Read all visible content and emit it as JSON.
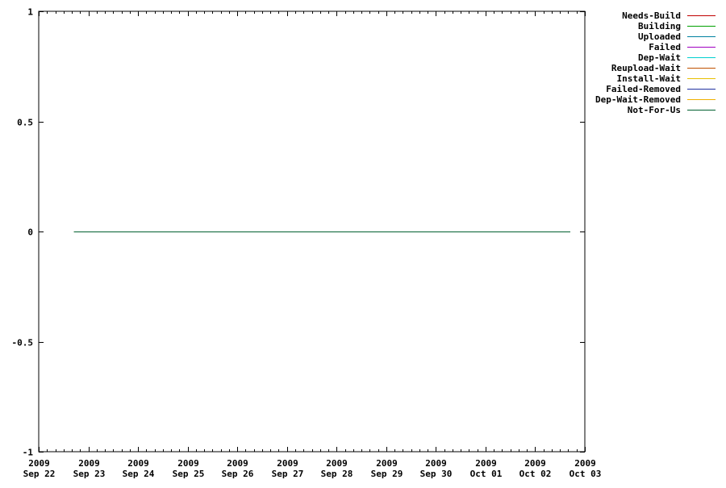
{
  "chart_data": {
    "type": "line",
    "title": "",
    "xlabel": "",
    "ylabel": "",
    "ylim": [
      -1,
      1
    ],
    "yticks": [
      1,
      0.5,
      0,
      -0.5,
      -1
    ],
    "ytick_labels": [
      "1",
      "0.5",
      "0",
      "-0.5",
      "-1"
    ],
    "xlim": [
      "2009-09-22",
      "2009-10-03"
    ],
    "xticks": [
      {
        "date": "2009-09-22",
        "year": "2009",
        "label": "Sep 22"
      },
      {
        "date": "2009-09-23",
        "year": "2009",
        "label": "Sep 23"
      },
      {
        "date": "2009-09-24",
        "year": "2009",
        "label": "Sep 24"
      },
      {
        "date": "2009-09-25",
        "year": "2009",
        "label": "Sep 25"
      },
      {
        "date": "2009-09-26",
        "year": "2009",
        "label": "Sep 26"
      },
      {
        "date": "2009-09-27",
        "year": "2009",
        "label": "Sep 27"
      },
      {
        "date": "2009-09-28",
        "year": "2009",
        "label": "Sep 28"
      },
      {
        "date": "2009-09-29",
        "year": "2009",
        "label": "Sep 29"
      },
      {
        "date": "2009-09-30",
        "year": "2009",
        "label": "Sep 30"
      },
      {
        "date": "2009-10-01",
        "year": "2009",
        "label": "Oct 01"
      },
      {
        "date": "2009-10-02",
        "year": "2009",
        "label": "Oct 02"
      },
      {
        "date": "2009-10-03",
        "year": "2009",
        "label": "Oct 03"
      }
    ],
    "x_range": [
      "2009-09-22 17:00",
      "2009-10-02 17:00"
    ],
    "grid": false,
    "legend_position": "outside-right-top",
    "series": [
      {
        "name": "Needs-Build",
        "color": "#c00000",
        "values": [
          0,
          0
        ]
      },
      {
        "name": "Building",
        "color": "#00a000",
        "values": [
          0,
          0
        ]
      },
      {
        "name": "Uploaded",
        "color": "#0080a0",
        "values": [
          0,
          0
        ]
      },
      {
        "name": "Failed",
        "color": "#a000c0",
        "values": [
          0,
          0
        ]
      },
      {
        "name": "Dep-Wait",
        "color": "#00d0d0",
        "values": [
          0,
          0
        ]
      },
      {
        "name": "Reupload-Wait",
        "color": "#c05000",
        "values": [
          0,
          0
        ]
      },
      {
        "name": "Install-Wait",
        "color": "#e8c000",
        "values": [
          0,
          0
        ]
      },
      {
        "name": "Failed-Removed",
        "color": "#2030a0",
        "values": [
          0,
          0
        ]
      },
      {
        "name": "Dep-Wait-Removed",
        "color": "#f0b000",
        "values": [
          0,
          0
        ]
      },
      {
        "name": "Not-For-Us",
        "color": "#006030",
        "values": [
          0,
          0
        ]
      }
    ]
  }
}
